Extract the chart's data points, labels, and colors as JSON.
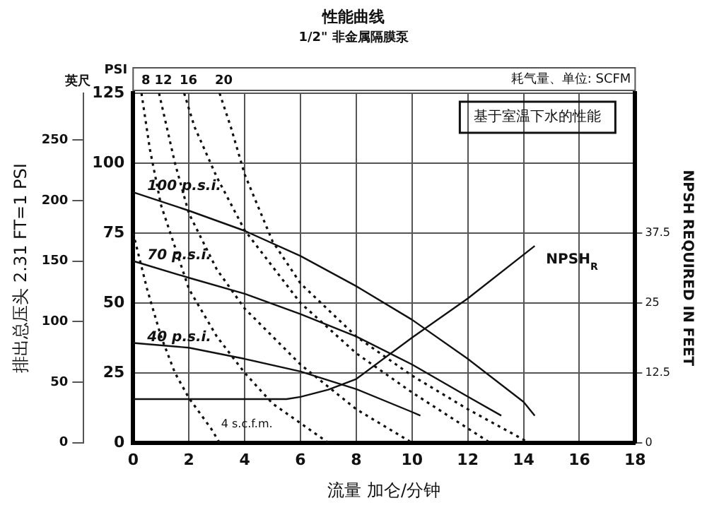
{
  "chart_data": {
    "type": "line",
    "title": "性能曲线",
    "subtitle": "1/2\" 非金属隔膜泵",
    "xlabel": "流量 加仑/分钟",
    "ylabel": "排出总压头 2.31 FT=1 PSI",
    "y2label": "NPSH REQUIRED IN FEET",
    "y3label": "英尺",
    "xlim": [
      0,
      18
    ],
    "xticks": [
      0,
      2,
      4,
      6,
      8,
      10,
      12,
      14,
      16,
      18
    ],
    "ylim": [
      0,
      125
    ],
    "yticks": [
      0,
      25,
      50,
      75,
      100,
      125
    ],
    "y2lim": [
      0,
      62.5
    ],
    "y2ticks": [
      0,
      {
        "value": 12.5,
        "label": "12.5"
      },
      25,
      {
        "value": 37.5,
        "label": "37.5"
      }
    ],
    "y3lim": [
      0,
      288.75
    ],
    "y3ticks": [
      0,
      50,
      100,
      150,
      200,
      250
    ],
    "grid": true,
    "legend": false,
    "marker": "none",
    "series": [
      {
        "name": "100 p.s.i.",
        "color": "#111111",
        "line_style": "solid",
        "x": [
          0,
          2,
          4,
          6,
          8,
          10,
          12,
          14,
          14.4
        ],
        "values": [
          89.6,
          83,
          75.8,
          66.8,
          56,
          44,
          30,
          14.6,
          9.7
        ]
      },
      {
        "name": "70 p.s.i.",
        "color": "#111111",
        "line_style": "solid",
        "x": [
          0,
          2,
          4,
          6,
          8,
          10,
          12,
          13.2
        ],
        "values": [
          65,
          59,
          53.3,
          46,
          38,
          28,
          16.5,
          9.7
        ]
      },
      {
        "name": "40 p.s.i.",
        "color": "#111111",
        "line_style": "solid",
        "x": [
          0,
          2,
          4,
          6,
          8,
          10,
          10.3
        ],
        "values": [
          35.7,
          34,
          30,
          25.5,
          19.2,
          11,
          9.7
        ]
      },
      {
        "name": "NPSH$_{R}$",
        "color": "#111111",
        "line_style": "solid",
        "axis": "y2",
        "x": [
          0,
          5.5,
          6,
          7,
          8,
          10,
          12,
          14.4
        ],
        "values": [
          7.8,
          7.8,
          8.2,
          9.5,
          11.4,
          18.8,
          25.8,
          35.2
        ]
      },
      {
        "name": "4 s.c.f.m.",
        "color": "#111111",
        "line_style": "dotted",
        "x": [
          0,
          0.5,
          1,
          1.5,
          2,
          2.8,
          3.1
        ],
        "values": [
          75,
          55,
          38,
          25,
          16,
          5,
          0
        ]
      },
      {
        "name": "8",
        "color": "#111111",
        "line_style": "dotted",
        "x": [
          0.3,
          0.6,
          1,
          2,
          3,
          4,
          5,
          7
        ],
        "values": [
          125,
          105,
          85,
          55,
          38,
          25,
          14,
          0
        ]
      },
      {
        "name": "12",
        "color": "#111111",
        "line_style": "dotted",
        "x": [
          0.93,
          1.5,
          2,
          3,
          4,
          6,
          8,
          10
        ],
        "values": [
          125,
          100,
          82,
          62,
          48,
          28,
          12,
          0
        ]
      },
      {
        "name": "16",
        "color": "#111111",
        "line_style": "dotted",
        "x": [
          1.83,
          2.2,
          3,
          4,
          6,
          8,
          10,
          12.8
        ],
        "values": [
          125,
          113,
          95,
          76,
          50,
          32,
          18,
          0
        ]
      },
      {
        "name": "20",
        "color": "#111111",
        "line_style": "dotted",
        "x": [
          3.1,
          3.5,
          4,
          5,
          6,
          8,
          10,
          12,
          14.2
        ],
        "values": [
          125,
          113,
          96,
          72,
          57,
          38,
          24,
          12,
          0
        ]
      }
    ],
    "annotations": [
      "PSI",
      "基于室温下水的性能",
      "耗气量、单位: SCFM"
    ]
  }
}
